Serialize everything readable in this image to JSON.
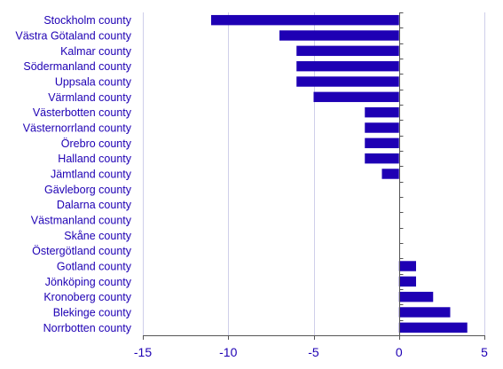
{
  "chart_data": {
    "type": "bar",
    "orientation": "horizontal",
    "categories": [
      "Stockholm county",
      "Västra Götaland county",
      "Kalmar county",
      "Södermanland county",
      "Uppsala county",
      "Värmland county",
      "Västerbotten county",
      "Västernorrland county",
      "Örebro county",
      "Halland county",
      "Jämtland county",
      "Gävleborg county",
      "Dalarna county",
      "Västmanland county",
      "Skåne county",
      "Östergötland county",
      "Gotland county",
      "Jönköping county",
      "Kronoberg county",
      "Blekinge county",
      "Norrbotten county"
    ],
    "values": [
      -11,
      -7,
      -6,
      -6,
      -6,
      -5,
      -2,
      -2,
      -2,
      -2,
      -1,
      0,
      0,
      0,
      0,
      0,
      1,
      1,
      2,
      3,
      4
    ],
    "xlim": [
      -15,
      5
    ],
    "xticks": [
      -15,
      -10,
      -5,
      0,
      5
    ],
    "xtick_labels": [
      "-15",
      "-10",
      "-5",
      "0",
      "5"
    ],
    "grid": "vertical",
    "legend": "none",
    "colors": {
      "bar": "#1e00b4",
      "text": "#1e00b4",
      "grid": "#cfcfea",
      "axis": "#555555"
    }
  }
}
